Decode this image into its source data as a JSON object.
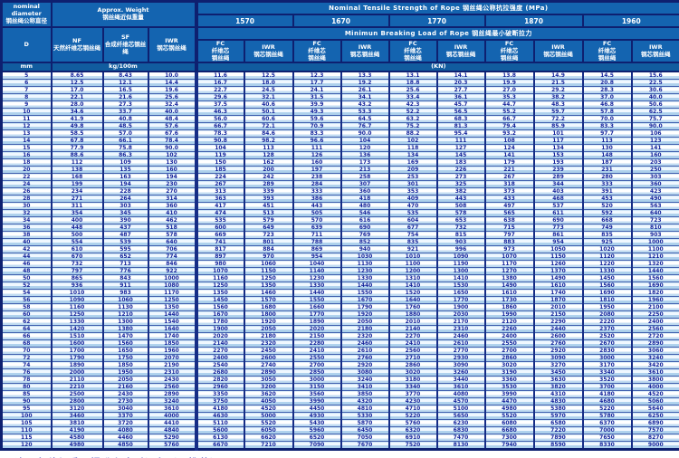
{
  "colors": {
    "header_blue": "#1464b0",
    "border_navy": "#0e2070",
    "row_stripe_blue": "#c6dff3",
    "body_text_navy": "#16259b"
  },
  "table": {
    "diameter": {
      "en1": "nominal",
      "en2": "diameter",
      "zh": "钢丝绳公称直径",
      "symbol": "D",
      "unit": "mm"
    },
    "weight": {
      "title_en": "Approx. Weight",
      "title_zh": "钢丝绳近似重量",
      "unit": "kg/100m",
      "columns": [
        {
          "code": "NF",
          "zh": "天然纤维芯钢丝绳"
        },
        {
          "code": "SF",
          "zh": "合成纤维芯钢丝绳"
        },
        {
          "code": "IWR",
          "zh": "钢芯钢丝绳"
        }
      ]
    },
    "strength": {
      "title": "Nominal Tensile Strength of Rope 钢丝绳公称抗拉强度 (MPa)",
      "breaking_title": "Minimun Breaking Load of Rope 钢丝绳最小破断拉力",
      "grades": [
        "1570",
        "1670",
        "1770",
        "1870",
        "1960"
      ],
      "core_fc": {
        "code": "FC",
        "zh": "纤维芯\n钢丝绳"
      },
      "core_iwr": {
        "code": "IWR",
        "zh": "钢芯钢丝绳"
      },
      "unit": "(KN)"
    },
    "column_ids": [
      "cell-diameter",
      "cell-weight-nf",
      "cell-weight-sf",
      "cell-weight-iwr",
      "cell-1570-fc",
      "cell-1570-iwr",
      "cell-1670-fc",
      "cell-1670-iwr",
      "cell-1770-fc",
      "cell-1770-iwr",
      "cell-1870-fc",
      "cell-1870-iwr",
      "cell-1960-fc",
      "cell-1960-iwr"
    ],
    "rows": [
      [
        "5",
        "8.65",
        "8.43",
        "10.0",
        "11.6",
        "12.5",
        "12.3",
        "13.3",
        "13.1",
        "14.1",
        "13.8",
        "14.9",
        "14.5",
        "15.6"
      ],
      [
        "6",
        "12.5",
        "12.1",
        "14.4",
        "16.7",
        "18.0",
        "17.7",
        "19.2",
        "18.8",
        "20.3",
        "19.9",
        "21.5",
        "20.8",
        "22.5"
      ],
      [
        "7",
        "17.0",
        "16.5",
        "19.6",
        "22.7",
        "24.5",
        "24.1",
        "26.1",
        "25.6",
        "27.7",
        "27.0",
        "29.2",
        "28.3",
        "30.6"
      ],
      [
        "8",
        "22.1",
        "21.6",
        "25.6",
        "29.6",
        "32.1",
        "31.5",
        "34.1",
        "33.4",
        "36.1",
        "35.3",
        "38.2",
        "37.0",
        "40.0"
      ],
      [
        "9",
        "28.0",
        "27.3",
        "32.4",
        "37.5",
        "40.6",
        "39.9",
        "43.2",
        "42.3",
        "45.7",
        "44.7",
        "48.3",
        "46.8",
        "50.6"
      ],
      [
        "10",
        "34.6",
        "33.7",
        "40.0",
        "46.3",
        "50.1",
        "49.3",
        "53.3",
        "52.2",
        "56.5",
        "55.2",
        "59.7",
        "57.8",
        "62.5"
      ],
      [
        "11",
        "41.9",
        "40.8",
        "48.4",
        "56.0",
        "60.6",
        "59.6",
        "64.5",
        "63.2",
        "68.3",
        "66.7",
        "72.2",
        "70.0",
        "75.7"
      ],
      [
        "12",
        "49.8",
        "48.5",
        "57.6",
        "66.7",
        "72.1",
        "70.9",
        "76.7",
        "75.2",
        "81.3",
        "79.4",
        "85.9",
        "83.3",
        "90.0"
      ],
      [
        "13",
        "58.5",
        "57.0",
        "67.6",
        "78.3",
        "84.6",
        "83.3",
        "90.0",
        "88.2",
        "95.4",
        "93.2",
        "101",
        "97.7",
        "106"
      ],
      [
        "14",
        "67.8",
        "66.1",
        "78.4",
        "90.8",
        "98.2",
        "96.6",
        "104",
        "102",
        "111",
        "108",
        "117",
        "113",
        "123"
      ],
      [
        "15",
        "77.9",
        "75.8",
        "90.0",
        "104",
        "113",
        "111",
        "120",
        "118",
        "127",
        "124",
        "134",
        "130",
        "141"
      ],
      [
        "16",
        "88.6",
        "86.3",
        "102",
        "119",
        "128",
        "126",
        "136",
        "134",
        "145",
        "141",
        "153",
        "148",
        "160"
      ],
      [
        "18",
        "112",
        "109",
        "130",
        "150",
        "162",
        "160",
        "173",
        "169",
        "183",
        "179",
        "193",
        "187",
        "203"
      ],
      [
        "20",
        "138",
        "135",
        "160",
        "185",
        "200",
        "197",
        "213",
        "209",
        "226",
        "221",
        "239",
        "231",
        "250"
      ],
      [
        "22",
        "168",
        "163",
        "194",
        "224",
        "242",
        "238",
        "258",
        "253",
        "273",
        "267",
        "289",
        "280",
        "303"
      ],
      [
        "24",
        "199",
        "194",
        "230",
        "267",
        "289",
        "284",
        "307",
        "301",
        "325",
        "318",
        "344",
        "333",
        "360"
      ],
      [
        "26",
        "234",
        "228",
        "270",
        "313",
        "339",
        "333",
        "360",
        "353",
        "382",
        "373",
        "403",
        "391",
        "423"
      ],
      [
        "28",
        "271",
        "264",
        "314",
        "363",
        "393",
        "386",
        "418",
        "409",
        "443",
        "433",
        "468",
        "453",
        "490"
      ],
      [
        "30",
        "311",
        "303",
        "360",
        "417",
        "451",
        "443",
        "480",
        "470",
        "508",
        "497",
        "537",
        "520",
        "563"
      ],
      [
        "32",
        "354",
        "345",
        "410",
        "474",
        "513",
        "505",
        "546",
        "535",
        "578",
        "565",
        "611",
        "592",
        "640"
      ],
      [
        "34",
        "400",
        "390",
        "462",
        "535",
        "579",
        "570",
        "616",
        "604",
        "653",
        "638",
        "690",
        "668",
        "723"
      ],
      [
        "36",
        "448",
        "437",
        "518",
        "600",
        "649",
        "639",
        "690",
        "677",
        "732",
        "715",
        "773",
        "749",
        "810"
      ],
      [
        "38",
        "500",
        "487",
        "578",
        "669",
        "723",
        "711",
        "769",
        "754",
        "815",
        "797",
        "861",
        "835",
        "903"
      ],
      [
        "40",
        "554",
        "539",
        "640",
        "741",
        "801",
        "788",
        "852",
        "835",
        "903",
        "883",
        "954",
        "925",
        "1000"
      ],
      [
        "42",
        "610",
        "595",
        "706",
        "817",
        "884",
        "869",
        "940",
        "921",
        "996",
        "973",
        "1050",
        "1020",
        "1100"
      ],
      [
        "44",
        "670",
        "652",
        "774",
        "897",
        "970",
        "954",
        "1030",
        "1010",
        "1090",
        "1070",
        "1150",
        "1120",
        "1210"
      ],
      [
        "46",
        "732",
        "713",
        "846",
        "980",
        "1060",
        "1040",
        "1130",
        "1100",
        "1190",
        "1170",
        "1260",
        "1220",
        "1320"
      ],
      [
        "48",
        "797",
        "776",
        "922",
        "1070",
        "1150",
        "1140",
        "1230",
        "1200",
        "1300",
        "1270",
        "1370",
        "1330",
        "1440"
      ],
      [
        "50",
        "865",
        "843",
        "1000",
        "1160",
        "1250",
        "1230",
        "1330",
        "1310",
        "1410",
        "1380",
        "1490",
        "1450",
        "1560"
      ],
      [
        "52",
        "936",
        "911",
        "1080",
        "1250",
        "1350",
        "1330",
        "1440",
        "1410",
        "1530",
        "1490",
        "1610",
        "1560",
        "1690"
      ],
      [
        "54",
        "1010",
        "983",
        "1170",
        "1350",
        "1460",
        "1440",
        "1550",
        "1520",
        "1650",
        "1610",
        "1740",
        "1690",
        "1820"
      ],
      [
        "56",
        "1090",
        "1060",
        "1250",
        "1450",
        "1570",
        "1550",
        "1670",
        "1640",
        "1770",
        "1730",
        "1870",
        "1810",
        "1960"
      ],
      [
        "58",
        "1160",
        "1130",
        "1350",
        "1560",
        "1680",
        "1660",
        "1790",
        "1760",
        "1900",
        "1860",
        "2010",
        "1950",
        "2100"
      ],
      [
        "60",
        "1250",
        "1210",
        "1440",
        "1670",
        "1800",
        "1770",
        "1920",
        "1880",
        "2030",
        "1990",
        "2150",
        "2080",
        "2250"
      ],
      [
        "62",
        "1330",
        "1300",
        "1540",
        "1780",
        "1920",
        "1890",
        "2050",
        "2010",
        "2170",
        "2120",
        "2290",
        "2220",
        "2400"
      ],
      [
        "64",
        "1420",
        "1380",
        "1640",
        "1900",
        "2050",
        "2020",
        "2180",
        "2140",
        "2310",
        "2260",
        "2440",
        "2370",
        "2560"
      ],
      [
        "66",
        "1510",
        "1470",
        "1740",
        "2020",
        "2180",
        "2150",
        "2320",
        "2270",
        "2460",
        "2400",
        "2600",
        "2520",
        "2720"
      ],
      [
        "68",
        "1600",
        "1560",
        "1850",
        "2140",
        "2320",
        "2280",
        "2460",
        "2410",
        "2610",
        "2550",
        "2760",
        "2670",
        "2890"
      ],
      [
        "70",
        "1700",
        "1650",
        "1960",
        "2270",
        "2450",
        "2410",
        "2610",
        "2560",
        "2770",
        "2700",
        "2920",
        "2830",
        "3060"
      ],
      [
        "72",
        "1790",
        "1750",
        "2070",
        "2400",
        "2600",
        "2550",
        "2760",
        "2710",
        "2930",
        "2860",
        "3090",
        "3000",
        "3240"
      ],
      [
        "74",
        "1890",
        "1850",
        "2190",
        "2540",
        "2740",
        "2700",
        "2920",
        "2860",
        "3090",
        "3020",
        "3270",
        "3170",
        "3420"
      ],
      [
        "76",
        "2000",
        "1950",
        "2310",
        "2680",
        "2890",
        "2850",
        "3080",
        "3020",
        "3260",
        "3190",
        "3450",
        "3340",
        "3610"
      ],
      [
        "78",
        "2110",
        "2050",
        "2430",
        "2820",
        "3050",
        "3000",
        "3240",
        "3180",
        "3440",
        "3360",
        "3630",
        "3520",
        "3800"
      ],
      [
        "80",
        "2210",
        "2160",
        "2560",
        "2960",
        "3200",
        "3150",
        "3410",
        "3340",
        "3610",
        "3530",
        "3820",
        "3700",
        "4000"
      ],
      [
        "85",
        "2500",
        "2430",
        "2890",
        "3350",
        "3620",
        "3560",
        "3850",
        "3770",
        "4080",
        "3990",
        "4310",
        "4180",
        "4520"
      ],
      [
        "90",
        "2800",
        "2730",
        "3240",
        "3750",
        "4050",
        "3990",
        "4320",
        "4230",
        "4570",
        "4470",
        "4830",
        "4680",
        "5060"
      ],
      [
        "95",
        "3120",
        "3040",
        "3610",
        "4180",
        "4520",
        "4450",
        "4810",
        "4710",
        "5100",
        "4980",
        "5380",
        "5220",
        "5640"
      ],
      [
        "100",
        "3460",
        "3370",
        "4000",
        "4630",
        "5000",
        "4930",
        "5330",
        "5220",
        "5650",
        "5520",
        "5970",
        "5780",
        "6250"
      ],
      [
        "105",
        "3810",
        "3720",
        "4410",
        "5110",
        "5520",
        "5430",
        "5870",
        "5760",
        "6230",
        "6080",
        "6580",
        "6370",
        "6890"
      ],
      [
        "110",
        "4190",
        "4080",
        "4840",
        "5600",
        "6050",
        "5960",
        "6450",
        "6320",
        "6830",
        "6680",
        "7220",
        "7000",
        "7570"
      ],
      [
        "115",
        "4580",
        "4460",
        "5290",
        "6130",
        "6620",
        "6520",
        "7050",
        "6910",
        "7470",
        "7300",
        "7890",
        "7650",
        "8270"
      ],
      [
        "120",
        "4980",
        "4850",
        "5760",
        "6670",
        "7210",
        "7090",
        "7670",
        "7520",
        "8130",
        "7940",
        "8590",
        "8330",
        "9000"
      ]
    ]
  },
  "footer": {
    "usage": "用途：各种起重、提升和牵引设备（不推荐）"
  }
}
